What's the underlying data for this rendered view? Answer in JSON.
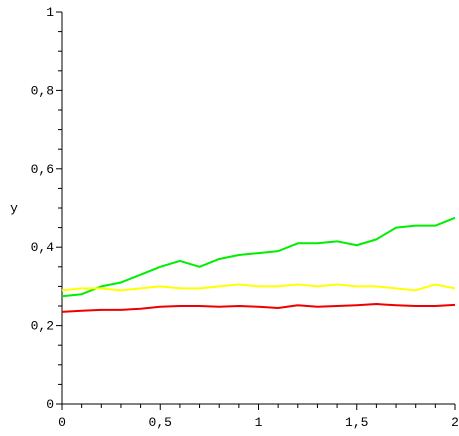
{
  "chart_data": {
    "type": "line",
    "xlabel": "",
    "ylabel": "y",
    "xlim": [
      0,
      2
    ],
    "ylim": [
      0,
      1
    ],
    "grid": false,
    "x_ticks": [
      0,
      0.5,
      1,
      1.5,
      2
    ],
    "x_tick_labels": [
      "0",
      "0,5",
      "1",
      "1,5",
      "2"
    ],
    "y_ticks": [
      0,
      0.2,
      0.4,
      0.6,
      0.8,
      1
    ],
    "y_tick_labels": [
      "0",
      "0,2",
      "0,4",
      "0,6",
      "0,8",
      "1"
    ],
    "x": [
      0,
      0.1,
      0.2,
      0.3,
      0.4,
      0.5,
      0.6,
      0.7,
      0.8,
      0.9,
      1.0,
      1.1,
      1.2,
      1.3,
      1.4,
      1.5,
      1.6,
      1.7,
      1.8,
      1.9,
      2.0
    ],
    "series": [
      {
        "color": "#00ee00",
        "values": [
          0.275,
          0.28,
          0.3,
          0.31,
          0.33,
          0.35,
          0.365,
          0.35,
          0.37,
          0.38,
          0.385,
          0.39,
          0.41,
          0.41,
          0.415,
          0.405,
          0.42,
          0.45,
          0.455,
          0.455,
          0.475
        ]
      },
      {
        "color": "#ffff00",
        "values": [
          0.29,
          0.295,
          0.295,
          0.29,
          0.295,
          0.3,
          0.295,
          0.295,
          0.3,
          0.305,
          0.3,
          0.3,
          0.305,
          0.3,
          0.305,
          0.3,
          0.3,
          0.295,
          0.29,
          0.305,
          0.295
        ]
      },
      {
        "color": "#ee0000",
        "values": [
          0.235,
          0.238,
          0.24,
          0.24,
          0.243,
          0.248,
          0.25,
          0.25,
          0.248,
          0.25,
          0.248,
          0.245,
          0.252,
          0.248,
          0.25,
          0.252,
          0.255,
          0.252,
          0.25,
          0.25,
          0.253
        ]
      }
    ]
  }
}
